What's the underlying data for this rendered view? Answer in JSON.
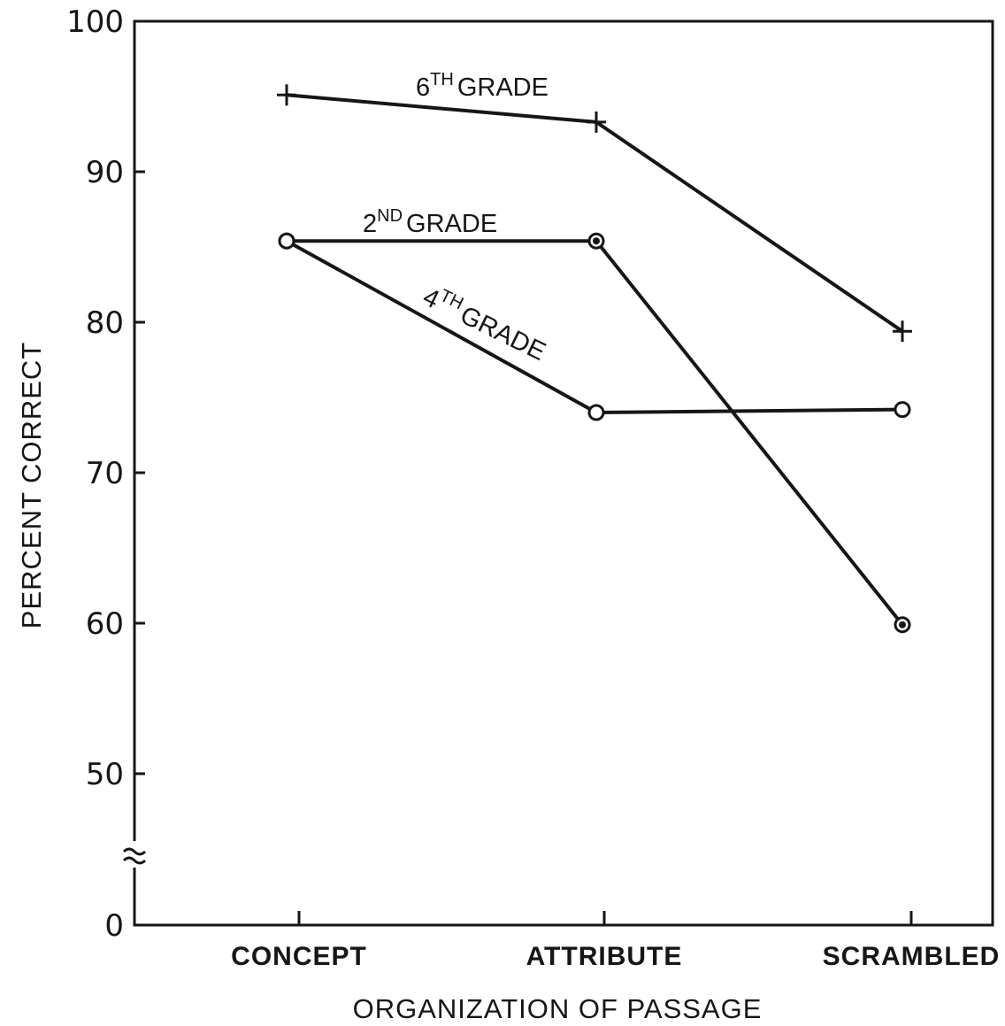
{
  "chart_data": {
    "type": "line",
    "xlabel": "ORGANIZATION OF PASSAGE",
    "ylabel": "PERCENT CORRECT",
    "categories": [
      "CONCEPT",
      "ATTRIBUTE",
      "SCRAMBLED"
    ],
    "yticks": [
      "0",
      "50",
      "60",
      "70",
      "80",
      "90",
      "100"
    ],
    "ylim": [
      45,
      100
    ],
    "axis_break": true,
    "grid": false,
    "series": [
      {
        "name": "6TH GRADE",
        "base": "6",
        "sup": "TH",
        "word": "GRADE",
        "marker": "plus",
        "values": [
          95.1,
          93.3,
          79.4
        ]
      },
      {
        "name": "2ND GRADE",
        "base": "2",
        "sup": "ND",
        "word": "GRADE",
        "marker": "filled-circle",
        "values": [
          85.4,
          85.4,
          59.9
        ]
      },
      {
        "name": "4TH GRADE",
        "base": "4",
        "sup": "TH",
        "word": "GRADE",
        "marker": "open-circle",
        "values": [
          85.4,
          74.0,
          74.2
        ]
      }
    ]
  }
}
